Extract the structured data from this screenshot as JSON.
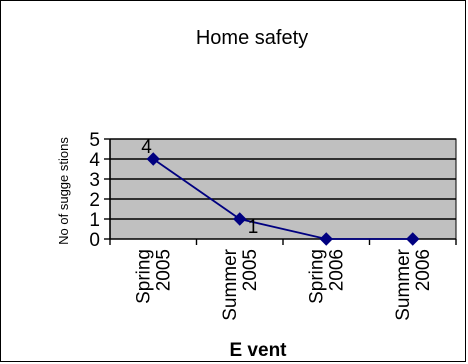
{
  "chart_data": {
    "type": "line",
    "title": "Home safety",
    "xlabel": "E vent",
    "ylabel": "No of sugge stions",
    "categories": [
      "Spring 2005",
      "Summer 2005",
      "Spring 2006",
      "Summer 2006"
    ],
    "category_lines": [
      [
        "Spring",
        "2005"
      ],
      [
        "Summer",
        "2005"
      ],
      [
        "Spring",
        "2006"
      ],
      [
        "Summer",
        "2006"
      ]
    ],
    "values": [
      4,
      1,
      0,
      0
    ],
    "data_labels": [
      "4",
      "1",
      "",
      ""
    ],
    "ylim": [
      0,
      5
    ],
    "yticks": [
      "0",
      "1",
      "2",
      "3",
      "4",
      "5"
    ],
    "grid": true,
    "legend": "none",
    "colors": {
      "plot_background": "#c0c0c0",
      "series_line": "#000080",
      "gridline": "#000000"
    }
  }
}
